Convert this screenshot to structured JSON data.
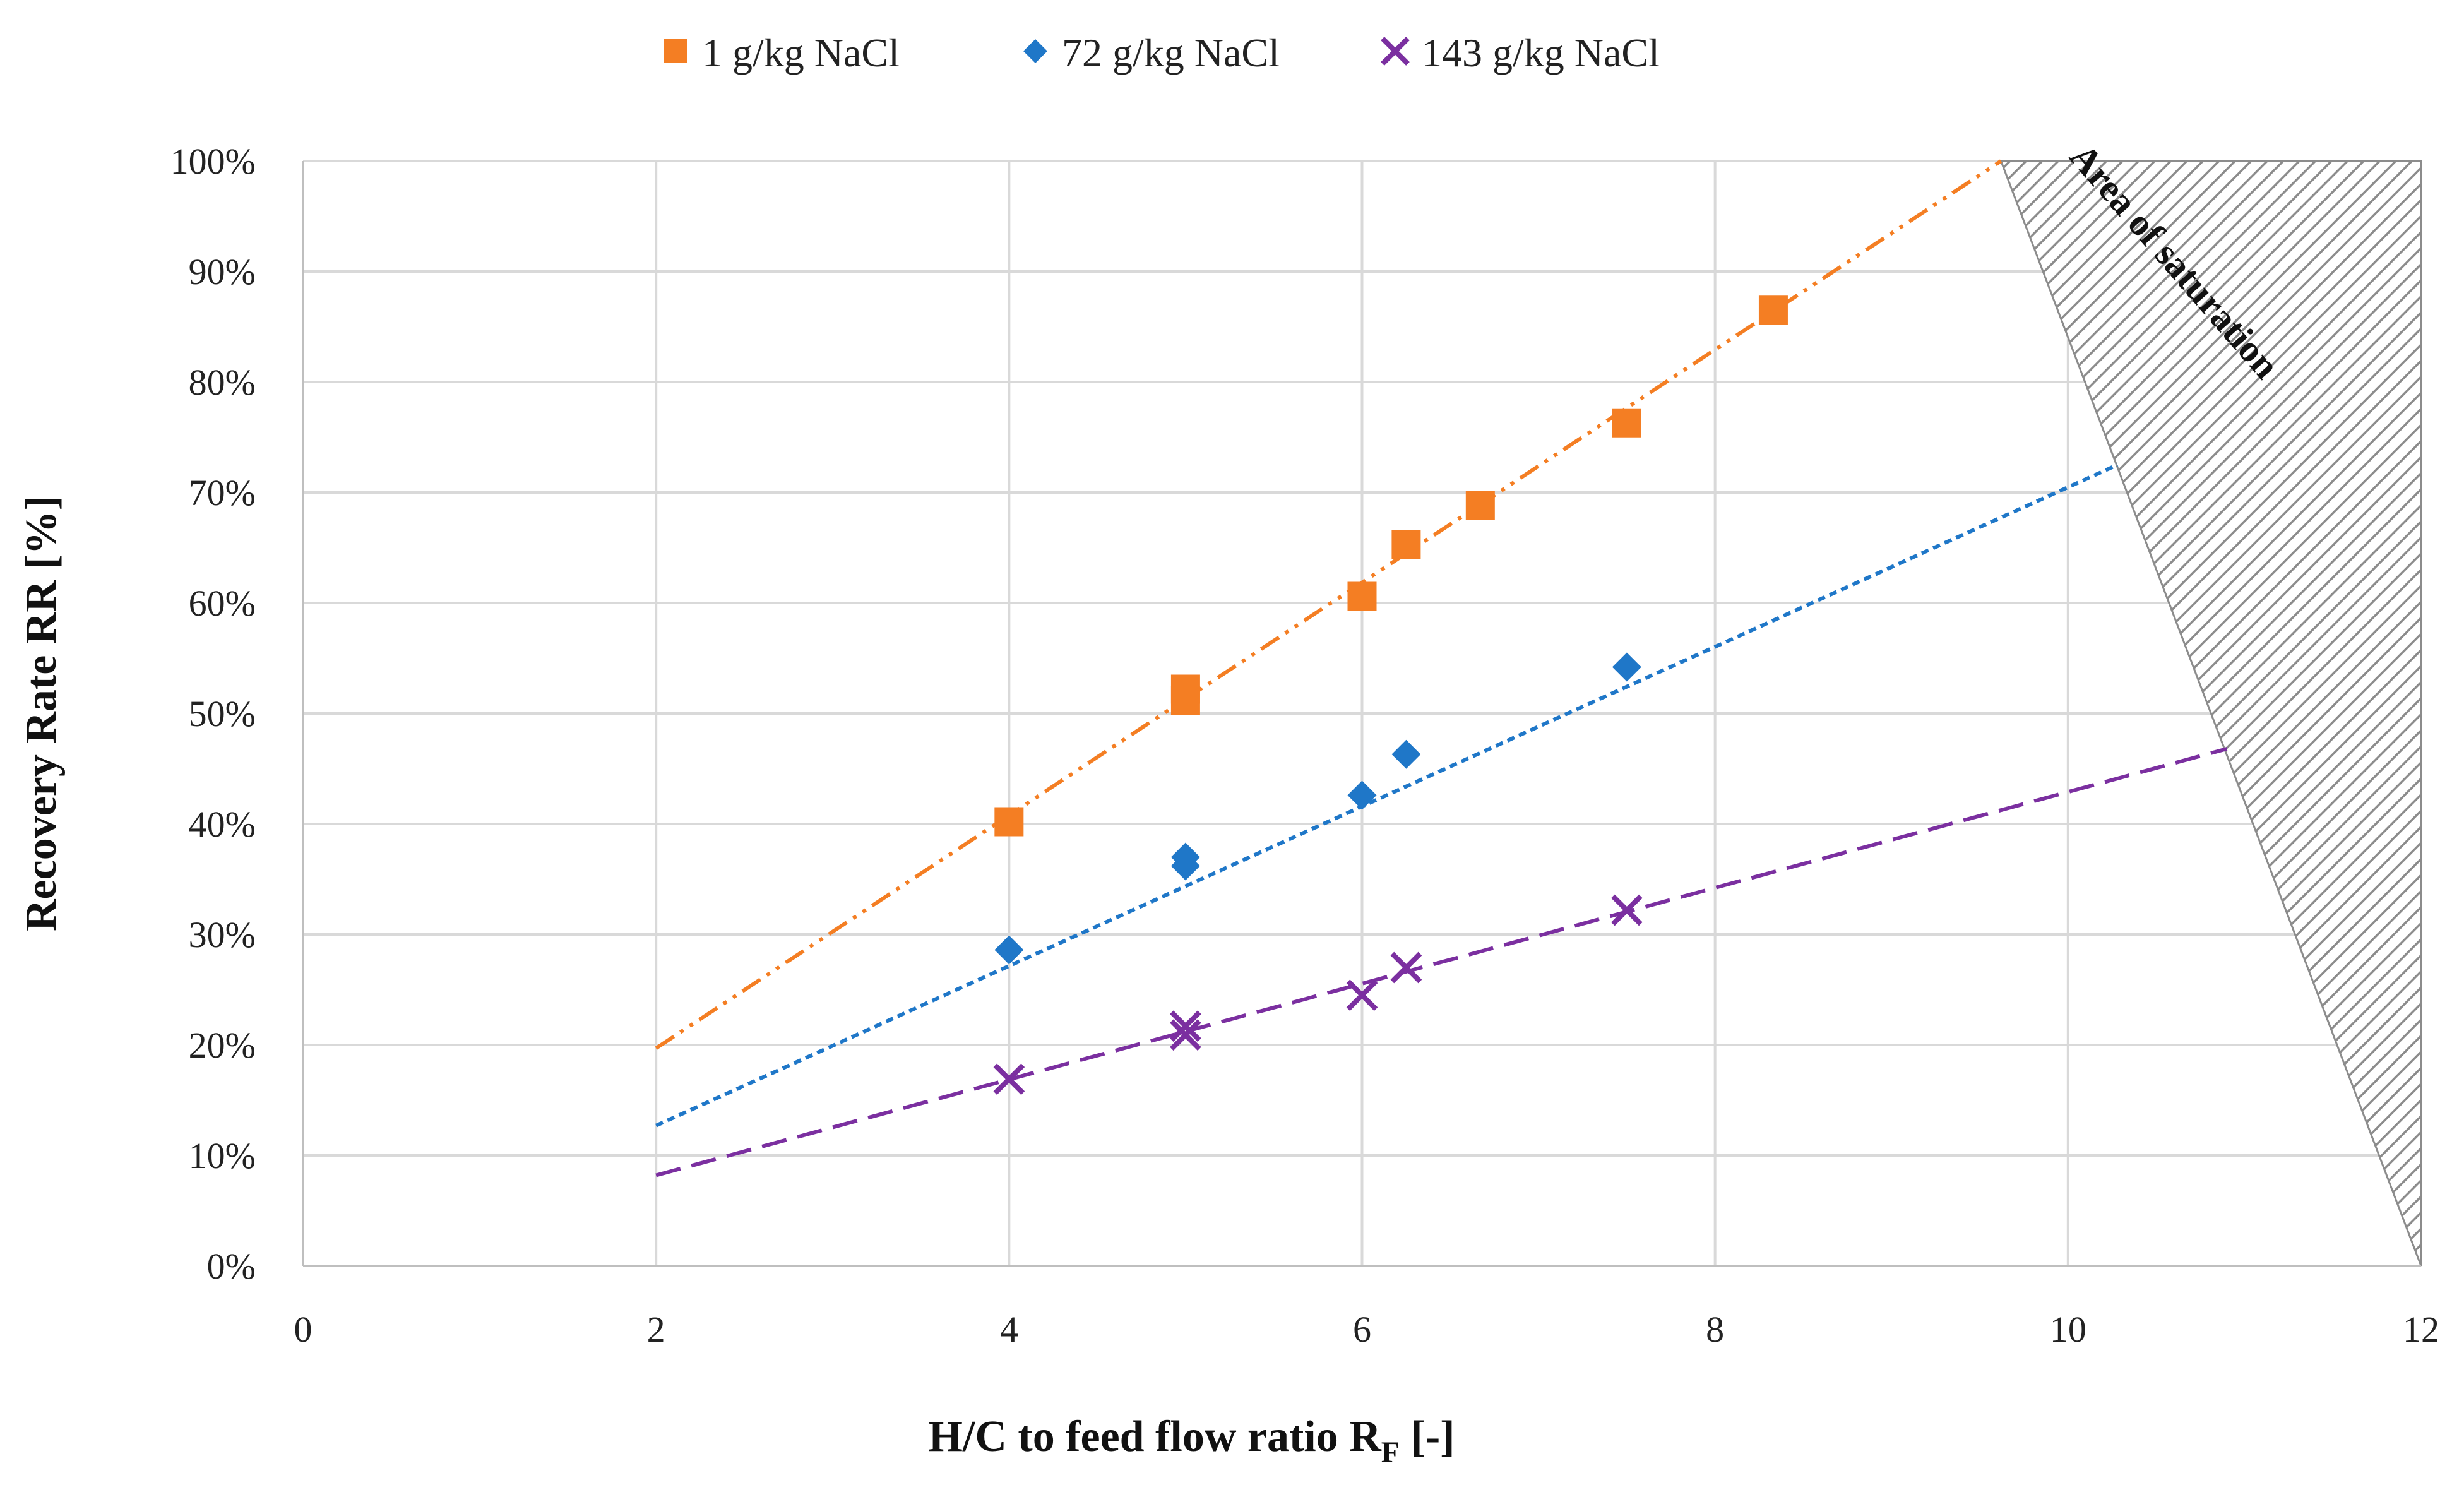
{
  "chart_data": {
    "type": "scatter",
    "title": "",
    "xlabel": "H/C to feed flow ratio R",
    "xlabel_subscript": "F",
    "xlabel_suffix": " [-]",
    "ylabel": "Recovery Rate RR [%]",
    "xlim": [
      0,
      12
    ],
    "ylim": [
      0,
      100
    ],
    "x_ticks": [
      0,
      2,
      4,
      6,
      8,
      10,
      12
    ],
    "x_tick_labels": [
      "0",
      "2",
      "4",
      "6",
      "8",
      "10",
      "12"
    ],
    "y_ticks": [
      0,
      10,
      20,
      30,
      40,
      50,
      60,
      70,
      80,
      90,
      100
    ],
    "y_tick_labels": [
      "0%",
      "10%",
      "20%",
      "30%",
      "40%",
      "50%",
      "60%",
      "70%",
      "80%",
      "90%",
      "100%"
    ],
    "grid": true,
    "legend_position": "top",
    "series": [
      {
        "name": "1 g/kg NaCl",
        "marker": "square",
        "color": "#F47E23",
        "x": [
          4,
          5,
          5,
          6,
          6.25,
          6.67,
          7.5,
          8.33
        ],
        "y": [
          40.2,
          51.2,
          52.2,
          60.6,
          65.3,
          68.8,
          76.3,
          86.5
        ],
        "trendline": {
          "style": "dash-dot-dot",
          "x": [
            2,
            9.62
          ],
          "y": [
            19.7,
            100
          ]
        }
      },
      {
        "name": "72 g/kg NaCl",
        "marker": "diamond",
        "color": "#1F77C8",
        "x": [
          4,
          5,
          5,
          6,
          6.25,
          7.5
        ],
        "y": [
          28.6,
          36.2,
          37.0,
          42.6,
          46.3,
          54.2
        ],
        "trendline": {
          "style": "dotted",
          "x": [
            2,
            10.28
          ],
          "y": [
            12.7,
            72.5
          ]
        }
      },
      {
        "name": "143 g/kg NaCl",
        "marker": "x",
        "color": "#7B2FA0",
        "x": [
          4,
          5,
          5,
          6,
          6.25,
          7.5
        ],
        "y": [
          16.9,
          20.9,
          21.7,
          24.5,
          27.0,
          32.2
        ],
        "trendline": {
          "style": "dashed",
          "x": [
            2,
            10.9
          ],
          "y": [
            8.2,
            46.8
          ]
        }
      }
    ],
    "shaded_region": {
      "label": "Area of saturation",
      "polygon": [
        [
          9.62,
          100
        ],
        [
          12,
          100
        ],
        [
          12,
          0
        ]
      ]
    }
  },
  "colors": {
    "grid": "#D9D9D9",
    "hatch": "#8C8C8C"
  }
}
